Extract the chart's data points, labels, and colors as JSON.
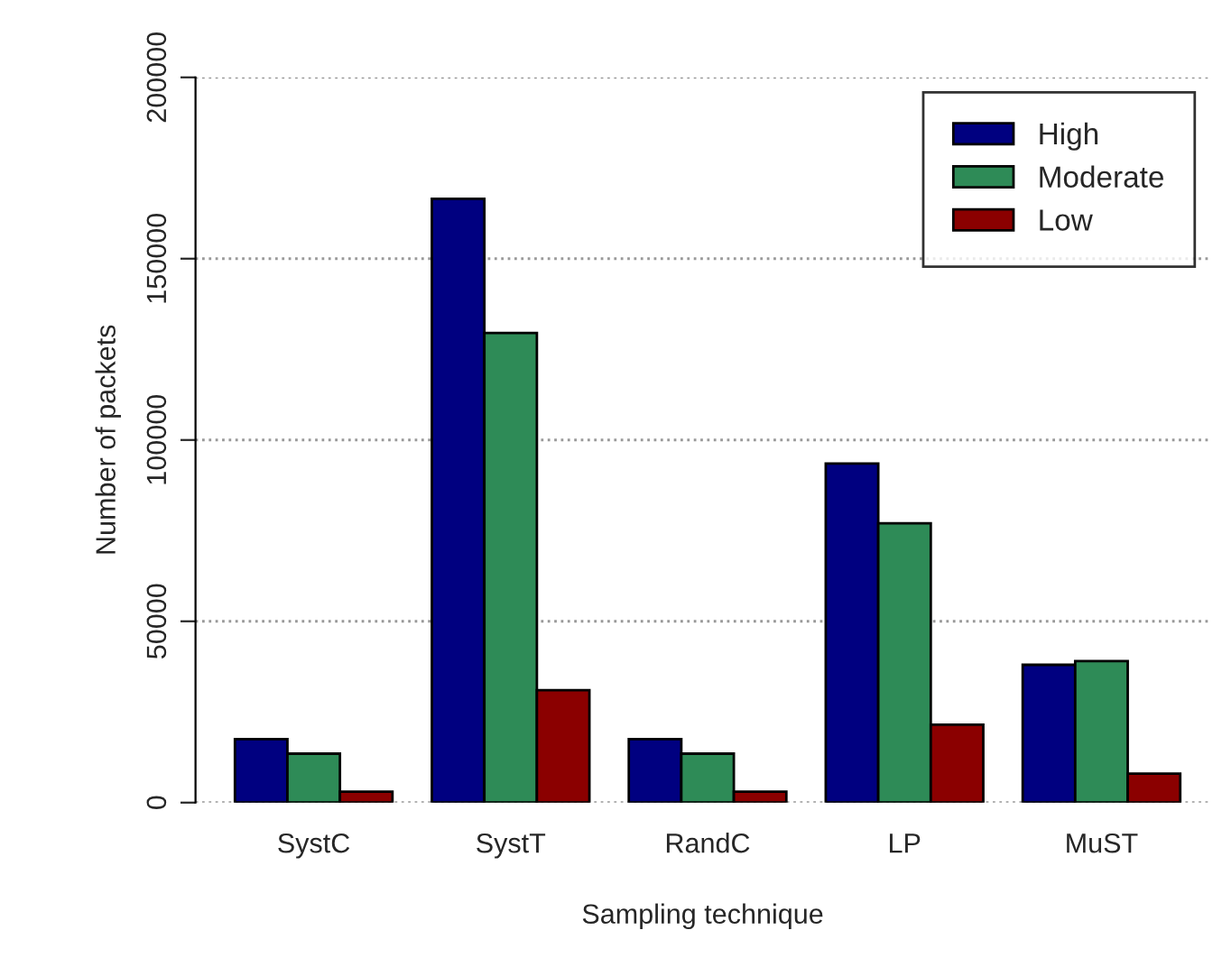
{
  "chart_data": {
    "type": "bar",
    "xlabel": "Sampling technique",
    "ylabel": "Number of packets",
    "categories": [
      "SystC",
      "SystT",
      "RandC",
      "LP",
      "MuST"
    ],
    "series": [
      {
        "name": "High",
        "color": "#000080",
        "values": [
          17500,
          166500,
          17500,
          93500,
          38000
        ]
      },
      {
        "name": "Moderate",
        "color": "#2e8b57",
        "values": [
          13500,
          129500,
          13500,
          77000,
          39000
        ]
      },
      {
        "name": "Low",
        "color": "#8b0000",
        "values": [
          3000,
          31000,
          3000,
          21500,
          8000
        ]
      }
    ],
    "ylim": [
      0,
      200000
    ],
    "yticks": [
      0,
      50000,
      100000,
      150000,
      200000
    ],
    "grid": "y",
    "legend": "top right"
  }
}
